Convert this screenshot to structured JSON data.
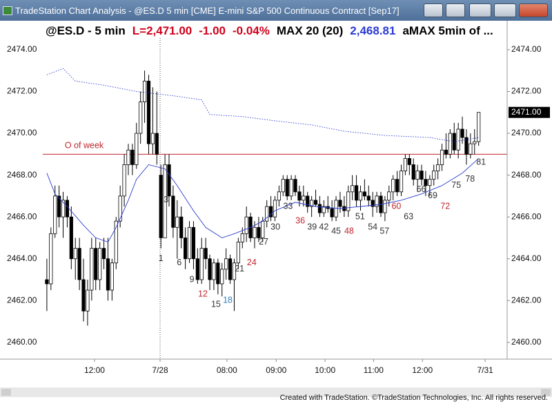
{
  "window": {
    "title": "TradeStation Chart Analysis - @ES.D 5 min [CME] E-mini S&P 500 Continuous Contract [Sep17]"
  },
  "footer": "Created with TradeStation. ©TradeStation Technologies, Inc. All rights reserved.",
  "chart_data": {
    "type": "candlestick",
    "title": "@ES.D - 5 min",
    "quote": [
      {
        "text": "L=2,471.00",
        "color": "#d0021b"
      },
      {
        "text": "-1.00",
        "color": "#d0021b"
      },
      {
        "text": "-0.04%",
        "color": "#d0021b"
      }
    ],
    "up_color": "#ffffff",
    "down_color": "#000000",
    "open": [
      2463.0,
      2462.8,
      2465.2,
      2467.0,
      2466.0,
      2466.8,
      2466.0,
      2464.0,
      2464.5,
      2463.0,
      2461.5,
      2462.5,
      2464.5,
      2463.0,
      2464.5,
      2464.0,
      2462.5,
      2463.8,
      2465.8,
      2467.0,
      2468.5,
      2469.2,
      2468.5,
      2470.0,
      2471.5,
      2472.5,
      2469.5,
      2470.0,
      2468.0,
      2465.0,
      2468.5,
      2467.0,
      2465.5,
      2466.0,
      2465.0,
      2464.0,
      2465.5,
      2464.0,
      2463.0,
      2464.5,
      2464.0,
      2463.0,
      2463.8,
      2462.8,
      2463.5,
      2464.0,
      2463.0,
      2463.8,
      2464.8,
      2465.2,
      2466.0,
      2465.0,
      2465.5,
      2465.0,
      2465.8,
      2466.5,
      2466.0,
      2466.8,
      2467.2,
      2467.8,
      2467.0,
      2467.8,
      2467.2,
      2466.8,
      2467.0,
      2466.5,
      2466.8,
      2466.6,
      2466.2,
      2466.5,
      2466.4,
      2466.0,
      2466.8,
      2466.5,
      2466.3,
      2467.2,
      2467.5,
      2466.8,
      2467.2,
      2467.0,
      2466.8,
      2466.5,
      2467.0,
      2466.2,
      2466.8,
      2467.2,
      2467.8,
      2467.2,
      2468.2,
      2468.8,
      2468.5,
      2467.8,
      2468.2,
      2467.8,
      2467.5,
      2467.8,
      2468.2,
      2468.5,
      2469.2,
      2469.0,
      2470.0,
      2469.2,
      2470.2,
      2469.8,
      2469.0,
      2469.5,
      2469.6
    ],
    "high": [
      2464.0,
      2465.5,
      2467.5,
      2467.5,
      2467.2,
      2467.0,
      2466.5,
      2465.0,
      2465.0,
      2464.0,
      2463.0,
      2465.0,
      2465.0,
      2464.8,
      2465.0,
      2465.0,
      2464.0,
      2466.0,
      2467.5,
      2469.0,
      2469.5,
      2469.5,
      2470.5,
      2472.0,
      2473.0,
      2472.8,
      2472.2,
      2472.0,
      2468.5,
      2469.0,
      2469.0,
      2467.5,
      2466.8,
      2466.5,
      2465.5,
      2465.8,
      2465.8,
      2464.5,
      2465.0,
      2465.0,
      2464.2,
      2464.0,
      2464.0,
      2463.8,
      2464.5,
      2464.2,
      2464.0,
      2465.0,
      2465.5,
      2466.5,
      2466.2,
      2465.8,
      2466.0,
      2466.0,
      2466.8,
      2467.0,
      2467.0,
      2467.5,
      2468.0,
      2468.0,
      2468.0,
      2468.0,
      2467.5,
      2467.5,
      2467.2,
      2467.0,
      2467.3,
      2467.0,
      2466.8,
      2467.0,
      2466.8,
      2467.0,
      2467.2,
      2467.0,
      2467.5,
      2468.0,
      2468.0,
      2467.5,
      2467.8,
      2467.5,
      2467.2,
      2467.2,
      2467.2,
      2467.0,
      2467.5,
      2468.0,
      2468.2,
      2468.5,
      2469.0,
      2469.0,
      2468.8,
      2468.5,
      2468.5,
      2468.2,
      2468.0,
      2468.5,
      2468.8,
      2469.5,
      2470.0,
      2470.2,
      2470.5,
      2470.5,
      2470.8,
      2470.2,
      2470.0,
      2470.2,
      2471.0
    ],
    "low": [
      2461.5,
      2462.5,
      2465.0,
      2465.5,
      2465.0,
      2465.5,
      2463.5,
      2463.0,
      2462.5,
      2461.0,
      2460.8,
      2462.0,
      2462.5,
      2462.5,
      2463.5,
      2462.0,
      2462.0,
      2463.5,
      2465.5,
      2466.5,
      2468.0,
      2468.0,
      2468.3,
      2469.5,
      2470.5,
      2469.0,
      2469.0,
      2468.5,
      2464.5,
      2465.0,
      2466.5,
      2465.0,
      2464.0,
      2464.5,
      2463.5,
      2463.8,
      2463.5,
      2462.8,
      2462.8,
      2463.5,
      2462.5,
      2462.5,
      2462.3,
      2462.2,
      2463.0,
      2462.8,
      2461.5,
      2463.5,
      2464.5,
      2464.8,
      2464.8,
      2464.5,
      2464.8,
      2464.8,
      2465.5,
      2465.8,
      2465.8,
      2466.5,
      2467.0,
      2466.8,
      2466.8,
      2467.0,
      2466.5,
      2466.5,
      2466.2,
      2466.0,
      2466.5,
      2466.0,
      2466.0,
      2466.2,
      2465.8,
      2465.8,
      2466.2,
      2466.0,
      2466.0,
      2466.8,
      2466.5,
      2466.3,
      2466.8,
      2466.5,
      2466.0,
      2466.2,
      2466.0,
      2465.8,
      2466.5,
      2466.8,
      2467.0,
      2467.0,
      2468.0,
      2468.0,
      2467.5,
      2467.2,
      2467.5,
      2467.0,
      2467.0,
      2467.5,
      2467.8,
      2468.2,
      2468.8,
      2468.8,
      2469.0,
      2468.8,
      2469.5,
      2468.5,
      2468.8,
      2469.0,
      2469.4
    ],
    "close": [
      2462.8,
      2465.2,
      2467.0,
      2466.0,
      2466.8,
      2466.0,
      2464.0,
      2464.5,
      2463.0,
      2461.5,
      2462.5,
      2464.5,
      2463.0,
      2464.5,
      2464.0,
      2462.5,
      2463.8,
      2465.8,
      2467.0,
      2468.5,
      2469.2,
      2468.5,
      2470.0,
      2471.5,
      2472.5,
      2469.5,
      2470.0,
      2469.0,
      2465.0,
      2468.5,
      2467.0,
      2465.5,
      2466.0,
      2465.0,
      2464.0,
      2465.5,
      2464.0,
      2463.0,
      2464.5,
      2464.0,
      2463.0,
      2463.8,
      2462.8,
      2463.5,
      2464.0,
      2463.0,
      2463.8,
      2464.8,
      2465.2,
      2466.0,
      2465.0,
      2465.5,
      2465.0,
      2465.8,
      2466.5,
      2466.0,
      2466.8,
      2467.2,
      2467.8,
      2467.0,
      2467.8,
      2467.2,
      2466.8,
      2467.0,
      2466.5,
      2466.8,
      2466.6,
      2466.2,
      2466.5,
      2466.4,
      2466.0,
      2466.8,
      2466.5,
      2466.3,
      2467.2,
      2467.5,
      2466.8,
      2467.2,
      2467.0,
      2466.8,
      2466.5,
      2467.0,
      2466.2,
      2466.8,
      2467.2,
      2467.8,
      2467.2,
      2468.2,
      2468.8,
      2468.5,
      2467.8,
      2468.2,
      2467.8,
      2467.5,
      2467.8,
      2468.2,
      2468.5,
      2469.2,
      2469.0,
      2470.0,
      2469.2,
      2470.2,
      2469.8,
      2469.0,
      2469.5,
      2469.6,
      2471.0
    ],
    "series": [
      {
        "name": "MAX 20 (20)",
        "last_label": "2,468.81",
        "color": "#2b3bd1",
        "style": "solid",
        "x": [
          0,
          2,
          5,
          9,
          12,
          15,
          17,
          20,
          22,
          25,
          29,
          32,
          36,
          39,
          43,
          46,
          50,
          53,
          56,
          61,
          66,
          72,
          77,
          82,
          87,
          92,
          97,
          102,
          106
        ],
        "values": [
          2468.1,
          2467.1,
          2466.5,
          2465.6,
          2465.0,
          2464.8,
          2465.5,
          2466.8,
          2467.8,
          2468.5,
          2468.3,
          2467.5,
          2466.3,
          2465.5,
          2465.0,
          2465.2,
          2465.5,
          2465.8,
          2466.3,
          2466.7,
          2466.5,
          2466.4,
          2466.5,
          2466.6,
          2466.8,
          2467.1,
          2467.5,
          2468.1,
          2468.8
        ]
      },
      {
        "name": "aMAX 5min of ...",
        "color": "#2b3bd1",
        "style": "dotted",
        "x": [
          0,
          4,
          5,
          7,
          14,
          22,
          31,
          38,
          40,
          48,
          56,
          65,
          73,
          83,
          94,
          100,
          106
        ],
        "values": [
          2472.8,
          2473.1,
          2472.9,
          2472.5,
          2472.3,
          2472.0,
          2471.8,
          2471.6,
          2470.9,
          2470.8,
          2470.6,
          2470.4,
          2470.1,
          2469.9,
          2469.8,
          2469.6,
          2469.8
        ]
      }
    ],
    "xlim": [
      -1,
      113
    ],
    "xticks": [
      {
        "value": 11.7,
        "label": "12:00"
      },
      {
        "value": 27.8,
        "label": "7/28"
      },
      {
        "value": 44.2,
        "label": "08:00"
      },
      {
        "value": 56.3,
        "label": "09:00"
      },
      {
        "value": 68.3,
        "label": "10:00"
      },
      {
        "value": 80.2,
        "label": "11:00"
      },
      {
        "value": 92.2,
        "label": "12:00"
      },
      {
        "value": 107.6,
        "label": "7/31"
      }
    ],
    "session_start": 27.8,
    "ylim": [
      2459.2,
      2474.56
    ],
    "yticks": [
      {
        "value": 2474,
        "label": "2474.00"
      },
      {
        "value": 2472,
        "label": "2472.00"
      },
      {
        "value": 2470,
        "label": "2470.00"
      },
      {
        "value": 2468,
        "label": "2468.00"
      },
      {
        "value": 2466,
        "label": "2466.00"
      },
      {
        "value": 2464,
        "label": "2464.00"
      },
      {
        "value": 2462,
        "label": "2462.00"
      },
      {
        "value": 2460,
        "label": "2460.00"
      }
    ],
    "last_price": {
      "value": 2471,
      "label": "2471.00"
    },
    "hlines": [
      {
        "value": 2469.0,
        "color": "#c0262d"
      }
    ],
    "annotations": [
      {
        "text": "O of week",
        "x": 4.4,
        "y": 2469.4,
        "color": "#c0262d",
        "anchor": "start"
      },
      {
        "text": "1",
        "x": 28,
        "y": 2464.0,
        "color": "#333333"
      },
      {
        "text": "3",
        "x": 29.3,
        "y": 2466.8,
        "color": "#333333"
      },
      {
        "text": "6",
        "x": 32.5,
        "y": 2463.8,
        "color": "#333333"
      },
      {
        "text": "9",
        "x": 35.6,
        "y": 2463.0,
        "color": "#333333"
      },
      {
        "text": "12",
        "x": 38.3,
        "y": 2462.3,
        "color": "#c0262d"
      },
      {
        "text": "15",
        "x": 41.5,
        "y": 2461.8,
        "color": "#333333"
      },
      {
        "text": "18",
        "x": 44.4,
        "y": 2462.0,
        "color": "#2f7fc1"
      },
      {
        "text": "21",
        "x": 47.3,
        "y": 2463.5,
        "color": "#333333"
      },
      {
        "text": "24",
        "x": 50.3,
        "y": 2463.8,
        "color": "#c0262d"
      },
      {
        "text": "27",
        "x": 53.2,
        "y": 2464.8,
        "color": "#333333"
      },
      {
        "text": "30",
        "x": 56.1,
        "y": 2465.5,
        "color": "#333333"
      },
      {
        "text": "33",
        "x": 59.2,
        "y": 2466.5,
        "color": "#333333"
      },
      {
        "text": "36",
        "x": 62.2,
        "y": 2465.8,
        "color": "#c0262d"
      },
      {
        "text": "39",
        "x": 65.1,
        "y": 2465.5,
        "color": "#333333"
      },
      {
        "text": "42",
        "x": 68.0,
        "y": 2465.5,
        "color": "#333333"
      },
      {
        "text": "45",
        "x": 71.0,
        "y": 2465.3,
        "color": "#333333"
      },
      {
        "text": "48",
        "x": 74.2,
        "y": 2465.3,
        "color": "#c0262d"
      },
      {
        "text": "51",
        "x": 76.9,
        "y": 2466.0,
        "color": "#333333"
      },
      {
        "text": "54",
        "x": 80.0,
        "y": 2465.5,
        "color": "#333333"
      },
      {
        "text": "57",
        "x": 82.9,
        "y": 2465.3,
        "color": "#333333"
      },
      {
        "text": "60",
        "x": 85.8,
        "y": 2466.5,
        "color": "#c0262d"
      },
      {
        "text": "63",
        "x": 88.8,
        "y": 2466.0,
        "color": "#333333"
      },
      {
        "text": "66",
        "x": 91.9,
        "y": 2467.3,
        "color": "#333333"
      },
      {
        "text": "69",
        "x": 94.7,
        "y": 2467.0,
        "color": "#333333"
      },
      {
        "text": "72",
        "x": 97.8,
        "y": 2466.5,
        "color": "#c0262d"
      },
      {
        "text": "75",
        "x": 100.5,
        "y": 2467.5,
        "color": "#333333"
      },
      {
        "text": "78",
        "x": 103.9,
        "y": 2467.8,
        "color": "#333333"
      },
      {
        "text": "81",
        "x": 106.6,
        "y": 2468.6,
        "color": "#333333"
      }
    ]
  }
}
